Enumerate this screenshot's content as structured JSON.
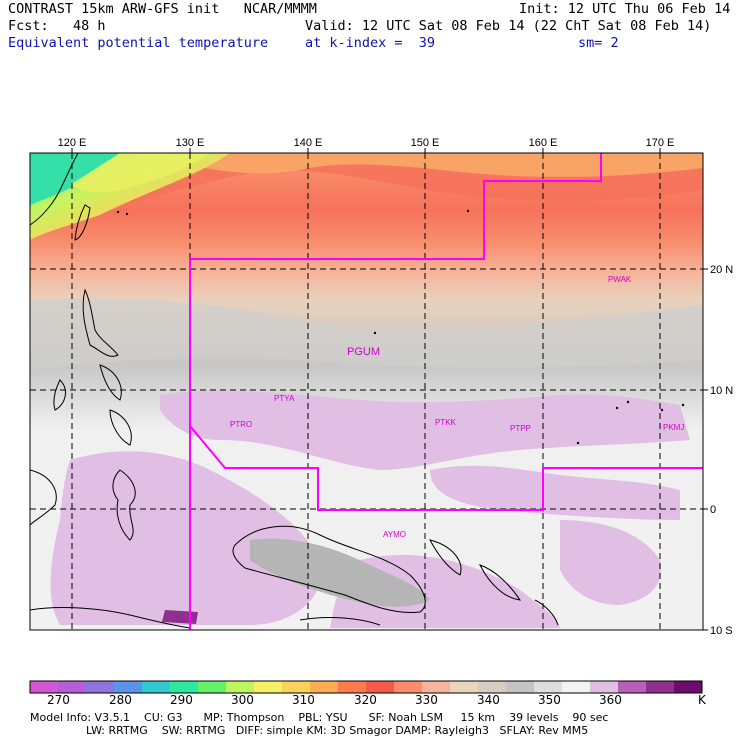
{
  "header": {
    "line1_left": "CONTRAST 15km ARW-GFS init   NCAR/MMMM",
    "line1_right": "Init: 12 UTC Thu 06 Feb 14",
    "line2_left": "Fcst:   48 h",
    "line2_right": "Valid: 12 UTC Sat 08 Feb 14 (22 ChT Sat 08 Feb 14)",
    "line3_left": "Equivalent potential temperature",
    "line3_mid": "at k-index =  39",
    "line3_right": "sm= 2"
  },
  "map": {
    "lon_labels": [
      "120 E",
      "130 E",
      "140 E",
      "150 E",
      "160 E",
      "170 E"
    ],
    "lat_labels": [
      "20 N",
      "10 N",
      "0",
      "10 S"
    ],
    "stations": [
      "PWAK",
      "PGUM",
      "PTYA",
      "PTRO",
      "PTKK",
      "PTPP",
      "PKMJ",
      "AYMO"
    ],
    "boundary_color": "#ff00ff",
    "station_color": "#d000d0"
  },
  "colorbar": {
    "colors": [
      "#d356d3",
      "#b65ed6",
      "#8e74df",
      "#5b93ea",
      "#34c8d0",
      "#2fe8a0",
      "#63f06a",
      "#bdf55e",
      "#f5f064",
      "#fbd25a",
      "#fcac52",
      "#fb7d4e",
      "#f65a4a",
      "#f98c6e",
      "#f6b49a",
      "#ecd3bd",
      "#d8cbc0",
      "#c4c4c4",
      "#dedede",
      "#f3f3f3",
      "#e1bee3",
      "#b860b8",
      "#8f2f8f",
      "#6e0c6e"
    ],
    "labels": [
      "270",
      "280",
      "290",
      "300",
      "310",
      "320",
      "330",
      "340",
      "350",
      "360",
      "K"
    ]
  },
  "footer": {
    "line1": "Model Info: V3.5.1    CU: G3      MP: Thompson    PBL: YSU      SF: Noah LSM     15 km    39 levels    90 sec",
    "line2": "                LW: RRTMG    SW: RRTMG   DIFF: simple KM: 3D Smagor DAMP: Rayleigh3   SFLAY: Rev MM5"
  }
}
